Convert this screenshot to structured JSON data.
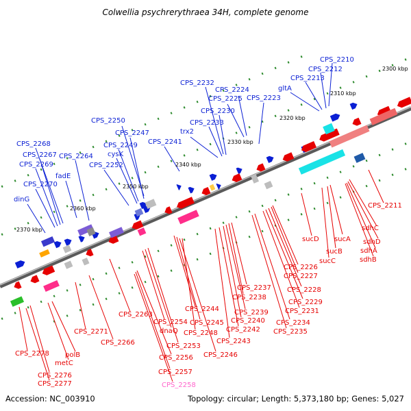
{
  "title": "Colwellia psychrerythraea 34H, complete genome",
  "footer": {
    "accession": "Accession: NC_003910",
    "summary": "Topology: circular; Length: 5,373,180 bp; Genes: 5,027"
  },
  "kbp_ticks": [
    "2300 kbp",
    "2310 kbp",
    "2320 kbp",
    "2330 kbp",
    "2340 kbp",
    "2350 kbp",
    "2360 kbp",
    "2370 kbp"
  ],
  "labels_forward": [
    "CPS_2210",
    "CPS_2212",
    "CPS_2213",
    "gltA",
    "CPS_2223",
    "CPS_2224",
    "CPS_2225",
    "CPS_2232",
    "CPS_2230",
    "CPS_2233",
    "trx2",
    "CPS_2241",
    "CPS_2250",
    "CPS_2247",
    "CPS_2249",
    "cysK",
    "CPS_2252",
    "CPS_2264",
    "CPS_2268",
    "CPS_2267",
    "CPS_2269",
    "fadE",
    "CPS_2270",
    "dinG"
  ],
  "labels_reverse": [
    "CPS_2211",
    "sdhC",
    "sdhD",
    "sdhA",
    "sdhB",
    "sucA",
    "sucB",
    "sucD",
    "sucC",
    "CPS_2226",
    "CPS_2227",
    "CPS_2228",
    "CPS_2229",
    "CPS_2231",
    "CPS_2234",
    "CPS_2235",
    "CPS_2237",
    "CPS_2238",
    "CPS_2239",
    "CPS_2240",
    "CPS_2242",
    "CPS_2243",
    "CPS_2244",
    "CPS_2245",
    "CPS_2246",
    "CPS_2248",
    "CPS_2253",
    "dnaQ",
    "CPS_2254",
    "CPS_2263",
    "CPS_2266",
    "CPS_2271",
    "CPS_2256",
    "CPS_2257",
    "CPS_2258",
    "polB",
    "metC",
    "CPS_2278",
    "CPS_2276",
    "CPS_2277"
  ],
  "colors": {
    "forward_gene": "#0a1fd4",
    "reverse_gene": "#e60000",
    "highlight_label": "#ff66cc",
    "backbone": "#7a7a7a",
    "tick_dot": "#2e8b2e"
  }
}
